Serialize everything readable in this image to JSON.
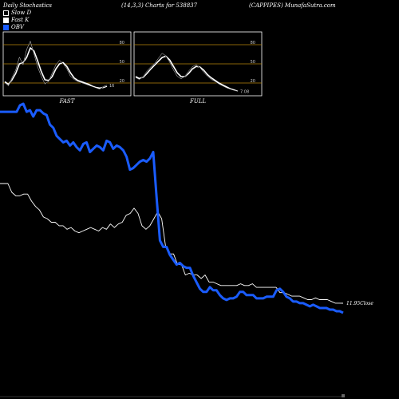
{
  "header": {
    "left": "Daily Stochastics",
    "middle": "(14,3,3) Charts for 538837",
    "right": "(CAPPIPES) MunafaSutra.com"
  },
  "legend": {
    "slow_d": "Slow  D",
    "fast_k": "Fast K",
    "obv": "OBV"
  },
  "colors": {
    "background": "#000000",
    "obv": "#1a5cff",
    "price": "#ffffff",
    "level_line": "#b8860b"
  },
  "chart_data": [
    {
      "type": "line",
      "title": "FAST",
      "yticks": [
        "80",
        "50",
        "20"
      ],
      "ylim": [
        0,
        100
      ],
      "end_label": "16",
      "series": [
        {
          "values": [
            20,
            15,
            28,
            40,
            60,
            48,
            72,
            85,
            65,
            45,
            30,
            18,
            22,
            35,
            48,
            55,
            50,
            42,
            30,
            25,
            22,
            20,
            18,
            16,
            14,
            12,
            10,
            14,
            16
          ]
        },
        {
          "values": [
            22,
            18,
            25,
            35,
            50,
            52,
            60,
            75,
            70,
            55,
            38,
            25,
            24,
            30,
            42,
            50,
            52,
            46,
            36,
            28,
            24,
            22,
            20,
            18,
            15,
            13,
            12,
            13,
            15
          ]
        }
      ]
    },
    {
      "type": "line",
      "title": "FULL",
      "yticks": [
        "80",
        "50",
        "20"
      ],
      "ylim": [
        0,
        100
      ],
      "end_label": "7.08",
      "series": [
        {
          "values": [
            28,
            25,
            30,
            38,
            45,
            50,
            58,
            66,
            62,
            52,
            40,
            30,
            26,
            30,
            38,
            45,
            48,
            44,
            36,
            30,
            25,
            22,
            18,
            15,
            12,
            10,
            8,
            7
          ]
        },
        {
          "values": [
            30,
            27,
            29,
            35,
            42,
            48,
            54,
            60,
            62,
            56,
            46,
            36,
            30,
            30,
            35,
            42,
            46,
            45,
            40,
            33,
            28,
            24,
            20,
            17,
            14,
            11,
            9,
            7
          ]
        }
      ]
    },
    {
      "type": "line",
      "end_label": "11.95Close",
      "series": [
        {
          "values": [
            80,
            80,
            80,
            75,
            73,
            73,
            74,
            74,
            70,
            67,
            65,
            61,
            60,
            58,
            58,
            56,
            56,
            54,
            55,
            53,
            52,
            53,
            54,
            55,
            54,
            53,
            55,
            54,
            57,
            55,
            57,
            58,
            62,
            63,
            66,
            63,
            56,
            54,
            56,
            60,
            64,
            60,
            44,
            40,
            40,
            34,
            34,
            28,
            29,
            28,
            28,
            26,
            28,
            24,
            24,
            23,
            22,
            22,
            22,
            22,
            22,
            23,
            22,
            22,
            23,
            21,
            21,
            21,
            21,
            21,
            21,
            18,
            18,
            17,
            16,
            16,
            16,
            15,
            14,
            14,
            15,
            14,
            14,
            14,
            13,
            12,
            12,
            11.95
          ]
        },
        {
          "values": [
            125,
            125,
            125,
            125,
            125,
            125,
            129,
            130,
            125,
            126,
            122,
            126,
            126,
            124,
            123,
            117,
            115,
            110,
            108,
            106,
            107,
            104,
            106,
            103,
            101,
            105,
            106,
            100,
            102,
            104,
            103,
            101,
            107,
            106,
            102,
            104,
            103,
            101,
            97,
            89,
            90,
            92,
            94,
            95,
            94,
            96,
            100,
            72,
            45,
            41,
            41,
            36,
            33,
            30,
            31,
            29,
            28,
            28,
            23,
            19,
            15,
            13,
            13,
            16,
            14,
            14,
            11,
            9,
            8,
            9,
            9,
            10,
            13,
            13,
            11,
            11,
            11,
            9,
            9,
            9,
            10,
            10,
            10,
            14,
            15,
            13,
            10,
            9,
            7,
            7,
            6,
            6,
            5,
            4,
            5,
            4,
            3,
            3,
            3,
            2,
            2,
            1,
            1,
            0
          ]
        }
      ]
    }
  ]
}
